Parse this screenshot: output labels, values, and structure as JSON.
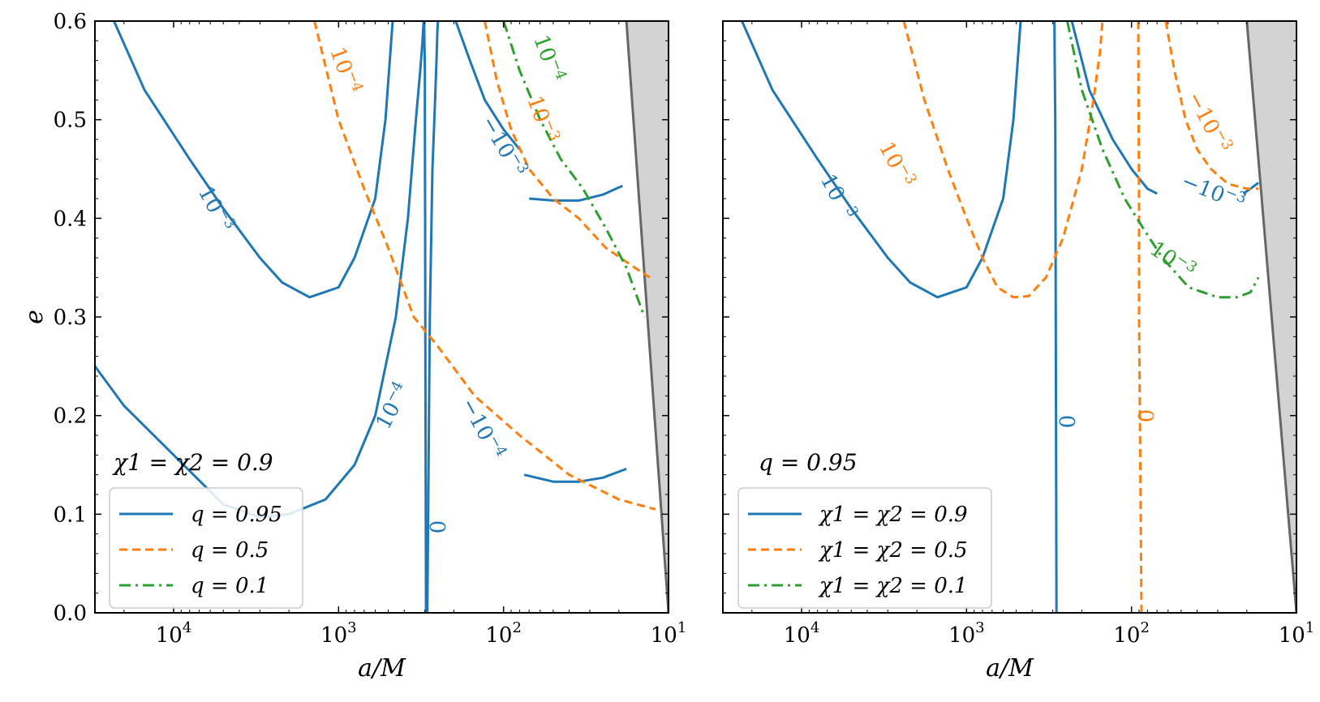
{
  "chart_data": [
    {
      "type": "line",
      "panel": "left",
      "xlabel": "a/M",
      "ylabel": "e",
      "xscale": "log",
      "x_reversed": true,
      "xlim": [
        30000,
        10
      ],
      "ylim": [
        0.0,
        0.6
      ],
      "yticks": [
        "0.0",
        "0.1",
        "0.2",
        "0.3",
        "0.4",
        "0.5",
        "0.6"
      ],
      "xticks": [
        {
          "base": "10",
          "exp": "4"
        },
        {
          "base": "10",
          "exp": "3"
        },
        {
          "base": "10",
          "exp": "2"
        },
        {
          "base": "10",
          "exp": "1"
        }
      ],
      "annotation": "χ1 = χ2 = 0.9",
      "legend": [
        {
          "label": "q = 0.95",
          "color": "#1f77b4",
          "dash": "solid"
        },
        {
          "label": "q = 0.5",
          "color": "#ff7f0e",
          "dash": "dashed"
        },
        {
          "label": "q = 0.1",
          "color": "#2ca02c",
          "dash": "dashdot"
        }
      ],
      "series": [
        {
          "name": "q = 0.95 (10^-3, upper)",
          "color": "#1f77b4",
          "dash": "solid",
          "x": [
            23000,
            15000,
            8000,
            5000,
            3000,
            2200,
            1500,
            1000,
            800,
            600,
            520,
            470
          ],
          "y": [
            0.6,
            0.53,
            0.46,
            0.41,
            0.36,
            0.335,
            0.32,
            0.33,
            0.36,
            0.42,
            0.5,
            0.6
          ]
        },
        {
          "name": "q = 0.95 (10^-4, lower)",
          "color": "#1f77b4",
          "dash": "solid",
          "x": [
            30000,
            20000,
            10000,
            5000,
            3000,
            2000,
            1200,
            800,
            600,
            450,
            380,
            340,
            320,
            310,
            305
          ],
          "y": [
            0.25,
            0.21,
            0.16,
            0.11,
            0.097,
            0.1,
            0.115,
            0.15,
            0.2,
            0.3,
            0.4,
            0.5,
            0.55,
            0.58,
            0.6
          ]
        },
        {
          "name": "q = 0.95 (0)",
          "color": "#1f77b4",
          "dash": "solid",
          "x": [
            295,
            296,
            297,
            298,
            299,
            300,
            300,
            302,
            303
          ],
          "y": [
            0.0,
            0.1,
            0.2,
            0.3,
            0.4,
            0.5,
            0.55,
            0.58,
            0.6
          ]
        },
        {
          "name": "q = 0.95 (-10^-4, lower)",
          "color": "#1f77b4",
          "dash": "solid",
          "x": [
            290,
            280,
            270,
            260,
            255,
            252,
            250
          ],
          "y": [
            0.0,
            0.3,
            0.45,
            0.52,
            0.56,
            0.59,
            0.6
          ]
        },
        {
          "name": "q = 0.95 (-10^-4, right)",
          "color": "#1f77b4",
          "dash": "solid",
          "x": [
            75,
            50,
            35,
            25,
            18
          ],
          "y": [
            0.14,
            0.133,
            0.133,
            0.137,
            0.146
          ]
        },
        {
          "name": "q = 0.95 (-10^-3, upper)",
          "color": "#1f77b4",
          "dash": "solid",
          "x": [
            195,
            160,
            130,
            100,
            80
          ],
          "y": [
            0.6,
            0.56,
            0.52,
            0.49,
            0.47
          ]
        },
        {
          "name": "q = 0.95 (-10^-3, right)",
          "color": "#1f77b4",
          "dash": "solid",
          "x": [
            70,
            50,
            35,
            25,
            19
          ],
          "y": [
            0.42,
            0.418,
            0.418,
            0.424,
            0.433
          ]
        },
        {
          "name": "q = 0.5 (10^-4)",
          "color": "#ff7f0e",
          "dash": "dashed",
          "x": [
            1400,
            1000,
            700,
            500,
            350,
            250,
            150,
            80,
            40,
            20,
            12
          ],
          "y": [
            0.6,
            0.5,
            0.43,
            0.37,
            0.3,
            0.27,
            0.22,
            0.18,
            0.14,
            0.115,
            0.105
          ]
        },
        {
          "name": "q = 0.5 (10^-3)",
          "color": "#ff7f0e",
          "dash": "dashed",
          "x": [
            130,
            110,
            90,
            70,
            50,
            35,
            24,
            16,
            13
          ],
          "y": [
            0.6,
            0.54,
            0.49,
            0.45,
            0.42,
            0.4,
            0.37,
            0.35,
            0.34
          ]
        },
        {
          "name": "q = 0.1 (10^-4)",
          "color": "#2ca02c",
          "dash": "dashdot",
          "x": [
            100,
            80,
            60,
            45,
            33,
            24,
            18,
            14
          ],
          "y": [
            0.6,
            0.55,
            0.5,
            0.46,
            0.43,
            0.39,
            0.35,
            0.3
          ]
        }
      ],
      "contour_labels": [
        {
          "text": "10^-3",
          "color": "#1f77b4"
        },
        {
          "text": "10^-4",
          "color": "#1f77b4"
        },
        {
          "text": "0",
          "color": "#1f77b4"
        },
        {
          "text": "-10^-4",
          "color": "#1f77b4"
        },
        {
          "text": "-10^-3",
          "color": "#1f77b4"
        },
        {
          "text": "10^-4",
          "color": "#ff7f0e"
        },
        {
          "text": "10^-3",
          "color": "#ff7f0e"
        },
        {
          "text": "10^-4",
          "color": "#2ca02c"
        }
      ],
      "excluded_region": {
        "color": "#d3d3d3",
        "boundary_x": [
          18,
          10
        ],
        "boundary_y": [
          0.6,
          0.0
        ]
      }
    },
    {
      "type": "line",
      "panel": "right",
      "xlabel": "a/M",
      "ylabel": "",
      "xscale": "log",
      "x_reversed": true,
      "xlim": [
        30000,
        10
      ],
      "ylim": [
        0.0,
        0.6
      ],
      "xticks": [
        {
          "base": "10",
          "exp": "4"
        },
        {
          "base": "10",
          "exp": "3"
        },
        {
          "base": "10",
          "exp": "2"
        },
        {
          "base": "10",
          "exp": "1"
        }
      ],
      "annotation": "q = 0.95",
      "legend": [
        {
          "label": "χ1 = χ2 = 0.9",
          "color": "#1f77b4",
          "dash": "solid"
        },
        {
          "label": "χ1 = χ2 = 0.5",
          "color": "#ff7f0e",
          "dash": "dashed"
        },
        {
          "label": "χ1 = χ2 = 0.1",
          "color": "#2ca02c",
          "dash": "dashdot"
        }
      ],
      "series": [
        {
          "name": "χ=0.9 (10^-3)",
          "color": "#1f77b4",
          "dash": "solid",
          "x": [
            23000,
            15000,
            8000,
            5000,
            3000,
            2200,
            1500,
            1000,
            800,
            600,
            520,
            470
          ],
          "y": [
            0.6,
            0.53,
            0.46,
            0.41,
            0.36,
            0.335,
            0.32,
            0.33,
            0.36,
            0.42,
            0.5,
            0.6
          ]
        },
        {
          "name": "χ=0.9 (0)",
          "color": "#1f77b4",
          "dash": "solid",
          "x": [
            285,
            286,
            287,
            288,
            289,
            290,
            292,
            293
          ],
          "y": [
            0.0,
            0.1,
            0.2,
            0.3,
            0.4,
            0.5,
            0.56,
            0.6
          ]
        },
        {
          "name": "χ=0.9 (-10^-3)",
          "color": "#1f77b4",
          "dash": "solid",
          "x": [
            230,
            180,
            130,
            100,
            80,
            70
          ],
          "y": [
            0.6,
            0.53,
            0.48,
            0.45,
            0.43,
            0.425
          ]
        },
        {
          "name": "χ=0.9 (-10^-3, right)",
          "color": "#1f77b4",
          "dash": "solid",
          "x": [
            21,
            19,
            17
          ],
          "y": [
            0.425,
            0.43,
            0.436
          ]
        },
        {
          "name": "χ=0.5 (10^-3)",
          "color": "#ff7f0e",
          "dash": "dashed",
          "x": [
            2400,
            1800,
            1300,
            1000,
            800,
            650,
            520,
            420,
            330,
            260,
            200,
            170,
            155,
            150
          ],
          "y": [
            0.6,
            0.52,
            0.45,
            0.4,
            0.36,
            0.33,
            0.32,
            0.321,
            0.34,
            0.38,
            0.45,
            0.52,
            0.57,
            0.6
          ]
        },
        {
          "name": "χ=0.5 (0)",
          "color": "#ff7f0e",
          "dash": "dashed",
          "x": [
            87,
            88,
            89,
            90,
            90,
            91
          ],
          "y": [
            0.0,
            0.1,
            0.2,
            0.3,
            0.4,
            0.6
          ]
        },
        {
          "name": "χ=0.5 (-10^-3)",
          "color": "#ff7f0e",
          "dash": "dashed",
          "x": [
            62,
            55,
            47,
            40,
            33,
            26,
            20,
            17
          ],
          "y": [
            0.6,
            0.55,
            0.5,
            0.47,
            0.45,
            0.435,
            0.43,
            0.43
          ]
        },
        {
          "name": "χ=0.1 (10^-3)",
          "color": "#2ca02c",
          "dash": "dashdot",
          "x": [
            245,
            200,
            150,
            110,
            85,
            65,
            45,
            30,
            23,
            19,
            17
          ],
          "y": [
            0.6,
            0.53,
            0.47,
            0.42,
            0.39,
            0.36,
            0.33,
            0.32,
            0.32,
            0.325,
            0.34
          ]
        }
      ],
      "contour_labels": [
        {
          "text": "10^-3",
          "color": "#1f77b4"
        },
        {
          "text": "0",
          "color": "#1f77b4"
        },
        {
          "text": "-10^-3",
          "color": "#1f77b4"
        },
        {
          "text": "10^-3",
          "color": "#ff7f0e"
        },
        {
          "text": "0",
          "color": "#ff7f0e"
        },
        {
          "text": "-10^-3",
          "color": "#ff7f0e"
        },
        {
          "text": "10^-3",
          "color": "#2ca02c"
        }
      ],
      "excluded_region": {
        "color": "#d3d3d3",
        "boundary_x": [
          20,
          10
        ],
        "boundary_y": [
          0.6,
          0.0
        ]
      }
    }
  ]
}
